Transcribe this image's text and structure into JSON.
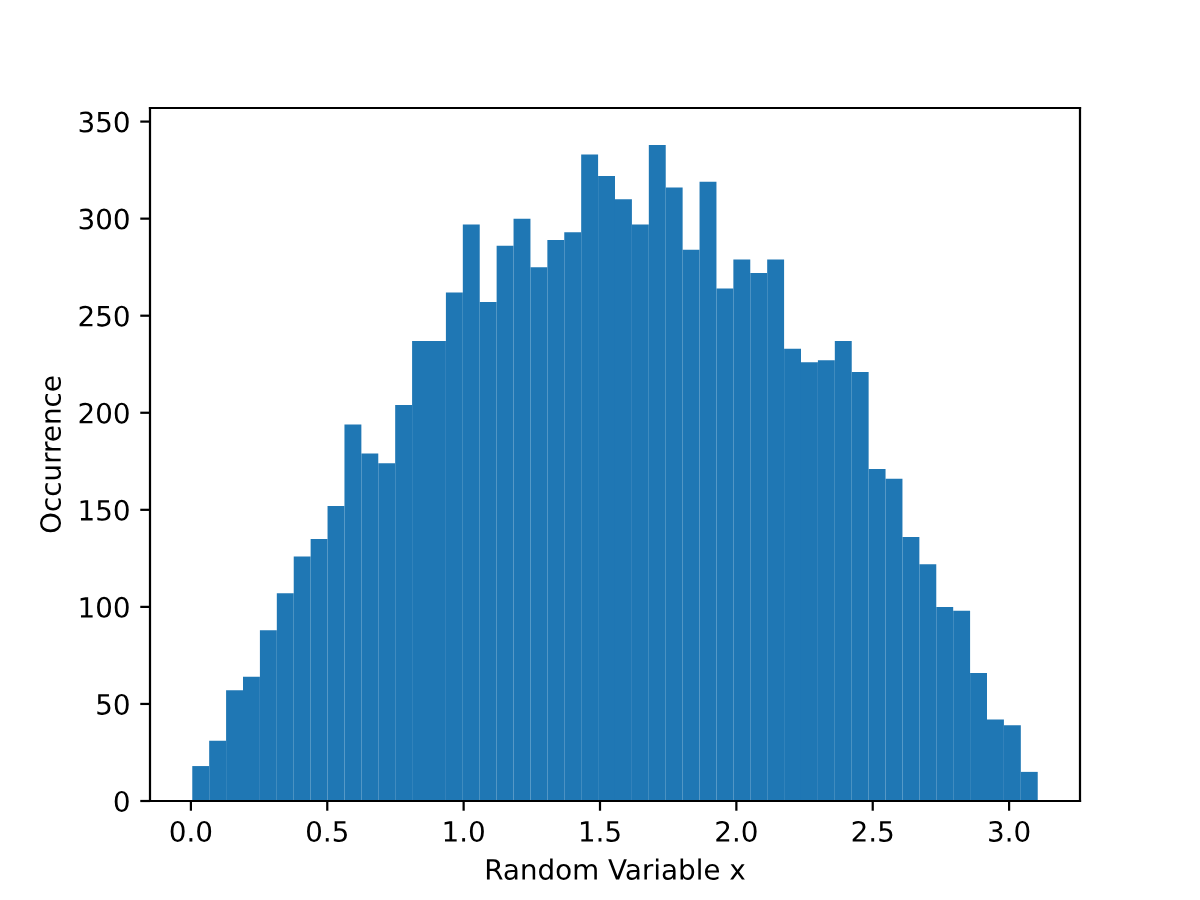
{
  "chart_data": {
    "type": "histogram",
    "xlabel": "Random Variable x",
    "ylabel": "Occurrence",
    "color": "#1f77b4",
    "bins": [
      0.005,
      0.067,
      0.129,
      0.191,
      0.253,
      0.315,
      0.377,
      0.439,
      0.501,
      0.563,
      0.625,
      0.687,
      0.749,
      0.811,
      0.873,
      0.935,
      0.997,
      1.059,
      1.121,
      1.183,
      1.245,
      1.307,
      1.369,
      1.431,
      1.493,
      1.555,
      1.617,
      1.679,
      1.741,
      1.803,
      1.865,
      1.927,
      1.989,
      2.051,
      2.113,
      2.175,
      2.237,
      2.299,
      2.361,
      2.423,
      2.485,
      2.547,
      2.609,
      2.671,
      2.733,
      2.795,
      2.857,
      2.919,
      2.981,
      3.043,
      3.105
    ],
    "values": [
      18,
      31,
      57,
      64,
      88,
      107,
      126,
      135,
      152,
      194,
      179,
      174,
      204,
      237,
      237,
      262,
      297,
      257,
      286,
      300,
      275,
      289,
      293,
      333,
      322,
      310,
      297,
      338,
      316,
      284,
      319,
      264,
      279,
      272,
      279,
      233,
      226,
      227,
      237,
      221,
      171,
      166,
      136,
      122,
      100,
      98,
      66,
      42,
      39,
      15
    ],
    "xlim": [
      -0.15,
      3.26
    ],
    "ylim": [
      0,
      357
    ],
    "xticks": [
      {
        "value": 0,
        "label": "0.0"
      },
      0.5,
      {
        "value": 1,
        "label": "1.0"
      },
      1.5,
      {
        "value": 2,
        "label": "2.0"
      },
      2.5,
      {
        "value": 3,
        "label": "3.0"
      }
    ],
    "yticks": [
      0,
      50,
      100,
      150,
      200,
      250,
      300,
      350
    ],
    "grid": false
  }
}
